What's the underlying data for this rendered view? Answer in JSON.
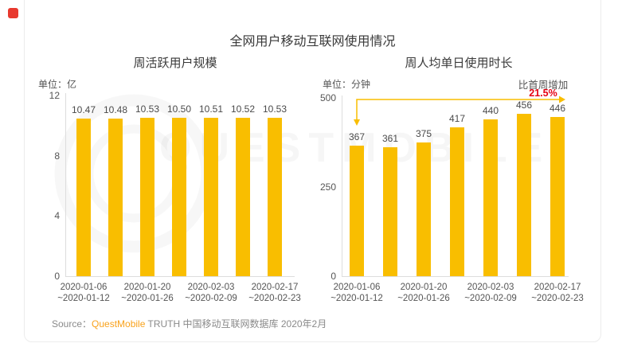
{
  "page": {
    "main_title": "全网用户移动互联网使用情况",
    "watermark_text": "QUESTMOBILE"
  },
  "colors": {
    "bar_yellow": "#F9BE00",
    "accent_red": "#E60012",
    "brand_orange": "#F9A21B",
    "logo_mark_red": "#E8392E"
  },
  "source": {
    "prefix": "Source：",
    "brand": "QuestMobile",
    "suffix": " TRUTH 中国移动互联网数据库 2020年2月"
  },
  "chart_data": [
    {
      "type": "bar",
      "title": "周活跃用户规模",
      "unit_label": "单位：亿",
      "values": [
        10.47,
        10.48,
        10.53,
        10.5,
        10.51,
        10.52,
        10.53
      ],
      "value_labels": [
        "10.47",
        "10.48",
        "10.53",
        "10.50",
        "10.51",
        "10.52",
        "10.53"
      ],
      "ylim": [
        0,
        12
      ],
      "y_ticks": [
        12,
        8,
        4,
        0
      ],
      "x_tick_labels": [
        [
          "2020-01-06",
          "~2020-01-12"
        ],
        [
          "2020-01-20",
          "~2020-01-26"
        ],
        [
          "2020-02-03",
          "~2020-02-09"
        ],
        [
          "2020-02-17",
          "~2020-02-23"
        ]
      ],
      "x_tick_bar_indices": [
        0,
        2,
        4,
        6
      ],
      "bar_color": "#F9BE00",
      "grid": false,
      "legend": "none"
    },
    {
      "type": "bar",
      "title": "周人均单日使用时长",
      "unit_label": "单位：分钟",
      "values": [
        367,
        361,
        375,
        417,
        440,
        456,
        446
      ],
      "value_labels": [
        "367",
        "361",
        "375",
        "417",
        "440",
        "456",
        "446"
      ],
      "ylim": [
        0,
        500
      ],
      "y_ticks": [
        500,
        250,
        0
      ],
      "x_tick_labels": [
        [
          "2020-01-06",
          "~2020-01-12"
        ],
        [
          "2020-01-20",
          "~2020-01-26"
        ],
        [
          "2020-02-03",
          "~2020-02-09"
        ],
        [
          "2020-02-17",
          "~2020-02-23"
        ]
      ],
      "x_tick_bar_indices": [
        0,
        2,
        4,
        6
      ],
      "bar_color": "#F9BE00",
      "grid": false,
      "legend": "none",
      "annotation": {
        "label": "比首周增加",
        "value": "21.5%",
        "value_color": "#E60012"
      }
    }
  ]
}
